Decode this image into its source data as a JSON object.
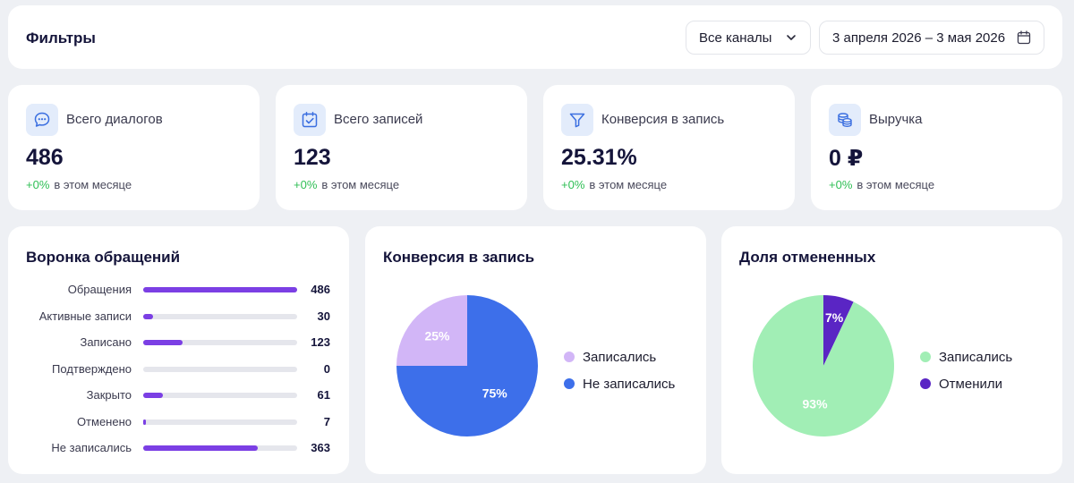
{
  "filters": {
    "title": "Фильтры",
    "channel_value": "Все каналы",
    "date_range": "3 апреля 2026 – 3 мая 2026"
  },
  "stats": [
    {
      "label": "Всего диалогов",
      "value": "486",
      "delta": "+0%",
      "delta_suffix": "в этом месяце",
      "icon": "chat-icon"
    },
    {
      "label": "Всего записей",
      "value": "123",
      "delta": "+0%",
      "delta_suffix": "в этом месяце",
      "icon": "calendar-check-icon"
    },
    {
      "label": "Конверсия в запись",
      "value": "25.31%",
      "delta": "+0%",
      "delta_suffix": "в этом месяце",
      "icon": "funnel-icon"
    },
    {
      "label": "Выручка",
      "value": "0 ₽",
      "delta": "+0%",
      "delta_suffix": "в этом месяце",
      "icon": "coins-icon"
    }
  ],
  "funnel": {
    "title": "Воронка обращений",
    "max": 486,
    "items": [
      {
        "label": "Обращения",
        "value": 486
      },
      {
        "label": "Активные записи",
        "value": 30
      },
      {
        "label": "Записано",
        "value": 123
      },
      {
        "label": "Подтверждено",
        "value": 0
      },
      {
        "label": "Закрыто",
        "value": 61
      },
      {
        "label": "Отменено",
        "value": 7
      },
      {
        "label": "Не записались",
        "value": 363
      }
    ]
  },
  "conversion": {
    "title": "Конверсия в запись",
    "legend": [
      "Записались",
      "Не записались"
    ]
  },
  "cancelled": {
    "title": "Доля отмененных",
    "legend": [
      "Записались",
      "Отменили"
    ]
  },
  "colors": {
    "accent": "#7b3fe4",
    "positive": "#2fbf55",
    "icon_bg": "#e3ecfb",
    "icon_fg": "#3b6fe0"
  },
  "chart_data": [
    {
      "type": "bar",
      "title": "Воронка обращений",
      "categories": [
        "Обращения",
        "Активные записи",
        "Записано",
        "Подтверждено",
        "Закрыто",
        "Отменено",
        "Не записались"
      ],
      "values": [
        486,
        30,
        123,
        0,
        61,
        7,
        363
      ]
    },
    {
      "type": "pie",
      "title": "Конверсия в запись",
      "labels": [
        "Записались",
        "Не записались"
      ],
      "values": [
        25,
        75
      ],
      "value_labels": [
        "25%",
        "75%"
      ],
      "colors": [
        "#d2b6f7",
        "#3d6fea"
      ]
    },
    {
      "type": "pie",
      "title": "Доля отмененных",
      "labels": [
        "Записались",
        "Отменили"
      ],
      "values": [
        93,
        7
      ],
      "value_labels": [
        "93%",
        "7%"
      ],
      "colors": [
        "#a1eeb5",
        "#5a25c4"
      ]
    }
  ]
}
